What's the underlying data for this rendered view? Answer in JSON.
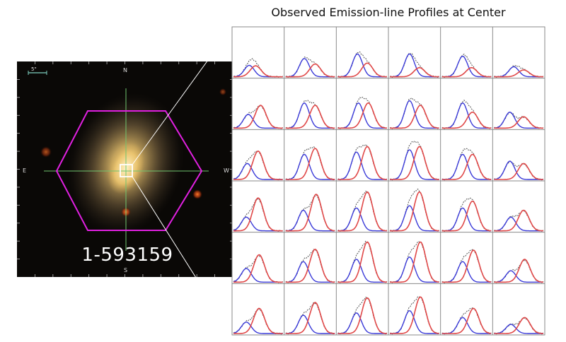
{
  "figure": {
    "title": "Observed Emission-line Profiles at Center",
    "galaxy_id": "1-593159",
    "compass": {
      "north": "N",
      "south": "S",
      "east": "E",
      "west": "W"
    },
    "scale_label": "5\""
  },
  "colors": {
    "background": "#ffffff",
    "image_bg": "#0a0806",
    "hexagon": "#e020e0",
    "crosshair": "#6fc56f",
    "center_box": "#ffffff",
    "grid": "#8a8a8a",
    "blue_component": "#3a3ad8",
    "red_component": "#e04848",
    "total_profile": "#555555"
  },
  "chart_data": {
    "type": "line",
    "layout": "6x6 grid of emission-line profiles",
    "series_components": [
      "blue",
      "red",
      "total"
    ],
    "cells": [
      [
        {
          "b": [
            0.25,
            0.32
          ],
          "r": [
            0.24,
            0.45
          ]
        },
        {
          "b": [
            0.4,
            0.38
          ],
          "r": [
            0.28,
            0.6
          ]
        },
        {
          "b": [
            0.5,
            0.4
          ],
          "r": [
            0.3,
            0.6
          ]
        },
        {
          "b": [
            0.5,
            0.4
          ],
          "r": [
            0.2,
            0.6
          ]
        },
        {
          "b": [
            0.45,
            0.42
          ],
          "r": [
            0.2,
            0.6
          ]
        },
        {
          "b": [
            0.22,
            0.4
          ],
          "r": [
            0.15,
            0.6
          ]
        }
      ],
      [
        {
          "b": [
            0.3,
            0.3
          ],
          "r": [
            0.5,
            0.55
          ]
        },
        {
          "b": [
            0.55,
            0.38
          ],
          "r": [
            0.5,
            0.6
          ]
        },
        {
          "b": [
            0.55,
            0.42
          ],
          "r": [
            0.55,
            0.62
          ]
        },
        {
          "b": [
            0.6,
            0.4
          ],
          "r": [
            0.5,
            0.62
          ]
        },
        {
          "b": [
            0.55,
            0.42
          ],
          "r": [
            0.35,
            0.62
          ]
        },
        {
          "b": [
            0.35,
            0.32
          ],
          "r": [
            0.25,
            0.6
          ]
        }
      ],
      [
        {
          "b": [
            0.35,
            0.28
          ],
          "r": [
            0.62,
            0.5
          ]
        },
        {
          "b": [
            0.55,
            0.38
          ],
          "r": [
            0.68,
            0.6
          ]
        },
        {
          "b": [
            0.6,
            0.38
          ],
          "r": [
            0.72,
            0.6
          ]
        },
        {
          "b": [
            0.65,
            0.4
          ],
          "r": [
            0.72,
            0.6
          ]
        },
        {
          "b": [
            0.55,
            0.42
          ],
          "r": [
            0.55,
            0.62
          ]
        },
        {
          "b": [
            0.4,
            0.32
          ],
          "r": [
            0.35,
            0.6
          ]
        }
      ],
      [
        {
          "b": [
            0.3,
            0.26
          ],
          "r": [
            0.72,
            0.5
          ]
        },
        {
          "b": [
            0.45,
            0.36
          ],
          "r": [
            0.8,
            0.62
          ]
        },
        {
          "b": [
            0.5,
            0.38
          ],
          "r": [
            0.85,
            0.6
          ]
        },
        {
          "b": [
            0.55,
            0.4
          ],
          "r": [
            0.85,
            0.6
          ]
        },
        {
          "b": [
            0.5,
            0.42
          ],
          "r": [
            0.65,
            0.62
          ]
        },
        {
          "b": [
            0.3,
            0.34
          ],
          "r": [
            0.45,
            0.6
          ]
        }
      ],
      [
        {
          "b": [
            0.3,
            0.26
          ],
          "r": [
            0.6,
            0.52
          ]
        },
        {
          "b": [
            0.45,
            0.36
          ],
          "r": [
            0.72,
            0.6
          ]
        },
        {
          "b": [
            0.5,
            0.38
          ],
          "r": [
            0.88,
            0.6
          ]
        },
        {
          "b": [
            0.55,
            0.4
          ],
          "r": [
            0.88,
            0.62
          ]
        },
        {
          "b": [
            0.45,
            0.42
          ],
          "r": [
            0.7,
            0.64
          ]
        },
        {
          "b": [
            0.25,
            0.34
          ],
          "r": [
            0.5,
            0.62
          ]
        }
      ],
      [
        {
          "b": [
            0.25,
            0.26
          ],
          "r": [
            0.55,
            0.52
          ]
        },
        {
          "b": [
            0.4,
            0.36
          ],
          "r": [
            0.68,
            0.6
          ]
        },
        {
          "b": [
            0.45,
            0.38
          ],
          "r": [
            0.78,
            0.6
          ]
        },
        {
          "b": [
            0.5,
            0.4
          ],
          "r": [
            0.8,
            0.62
          ]
        },
        {
          "b": [
            0.35,
            0.42
          ],
          "r": [
            0.55,
            0.64
          ]
        },
        {
          "b": [
            0.2,
            0.34
          ],
          "r": [
            0.35,
            0.62
          ]
        }
      ]
    ]
  }
}
